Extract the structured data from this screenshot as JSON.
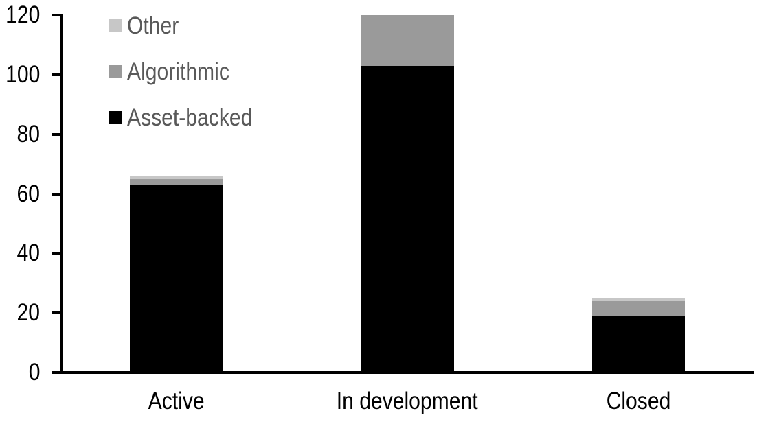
{
  "chart_data": {
    "type": "bar",
    "stacked": true,
    "title": "",
    "xlabel": "",
    "ylabel": "",
    "categories": [
      "Active",
      "In development",
      "Closed"
    ],
    "series": [
      {
        "name": "Asset-backed",
        "color": "#000000",
        "values": [
          63,
          103,
          19
        ]
      },
      {
        "name": "Algorithmic",
        "color": "#9a9a9a",
        "values": [
          2,
          17,
          5
        ]
      },
      {
        "name": "Other",
        "color": "#c7c7c7",
        "values": [
          1,
          0,
          1
        ]
      }
    ],
    "ylim": [
      0,
      120
    ],
    "yticks": [
      0,
      20,
      40,
      60,
      80,
      100,
      120
    ],
    "grid": false,
    "legend_position": "top-left",
    "legend_order": [
      "Other",
      "Algorithmic",
      "Asset-backed"
    ]
  },
  "colors": {
    "background": "#ffffff",
    "axis": "#000000",
    "tick_label_text": "#000000",
    "category_label_text": "#000000",
    "legend_text": "#595959"
  }
}
